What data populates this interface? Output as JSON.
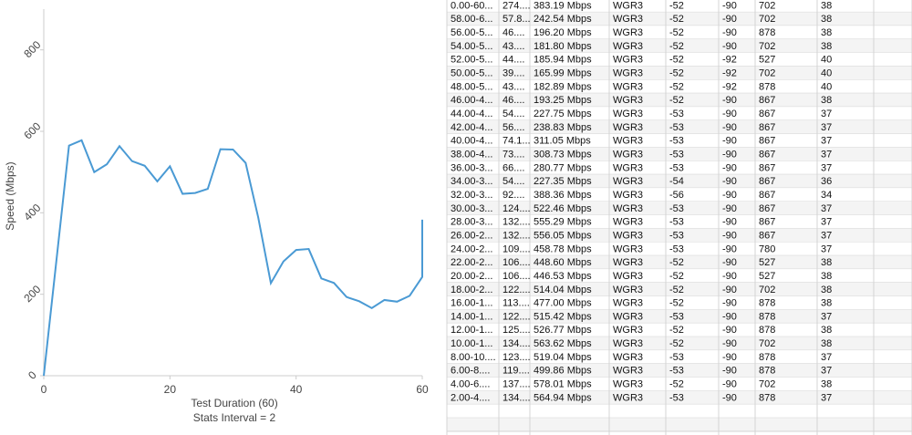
{
  "chart_data": {
    "type": "line",
    "x_label": "Test Duration (60)",
    "x_note": "Stats Interval = 2",
    "y_label": "Speed (Mbps)",
    "x": [
      0,
      4,
      6,
      8,
      10,
      12,
      14,
      16,
      18,
      20,
      22,
      24,
      26,
      28,
      30,
      32,
      34,
      36,
      38,
      40,
      42,
      44,
      46,
      48,
      50,
      52,
      54,
      56,
      58,
      60,
      60
    ],
    "values": [
      0,
      564.94,
      578.01,
      499.86,
      519.04,
      563.62,
      526.77,
      515.42,
      477.0,
      514.04,
      446.53,
      448.6,
      458.78,
      556.05,
      555.29,
      522.46,
      388.36,
      227.35,
      280.77,
      308.73,
      311.05,
      238.83,
      227.75,
      193.25,
      182.89,
      165.99,
      185.94,
      181.8,
      196.2,
      242.54,
      383.19
    ],
    "color": "#4a9ad4",
    "xlim": [
      0,
      60
    ],
    "xticks": [
      0,
      20,
      40,
      60
    ],
    "ylim": [
      0,
      900
    ],
    "yticks": [
      0,
      200,
      400,
      600,
      800
    ]
  },
  "table": {
    "rows": [
      [
        "0.00-60...",
        "274....",
        "383.19 Mbps",
        "WGR3",
        "-52",
        "-90",
        "702",
        "38"
      ],
      [
        "58.00-6...",
        "57.8...",
        "242.54 Mbps",
        "WGR3",
        "-52",
        "-90",
        "702",
        "38"
      ],
      [
        "56.00-5...",
        "46....",
        "196.20 Mbps",
        "WGR3",
        "-52",
        "-90",
        "878",
        "38"
      ],
      [
        "54.00-5...",
        "43....",
        "181.80 Mbps",
        "WGR3",
        "-52",
        "-90",
        "702",
        "38"
      ],
      [
        "52.00-5...",
        "44....",
        "185.94 Mbps",
        "WGR3",
        "-52",
        "-92",
        "527",
        "40"
      ],
      [
        "50.00-5...",
        "39....",
        "165.99 Mbps",
        "WGR3",
        "-52",
        "-92",
        "702",
        "40"
      ],
      [
        "48.00-5...",
        "43....",
        "182.89 Mbps",
        "WGR3",
        "-52",
        "-92",
        "878",
        "40"
      ],
      [
        "46.00-4...",
        "46....",
        "193.25 Mbps",
        "WGR3",
        "-52",
        "-90",
        "867",
        "38"
      ],
      [
        "44.00-4...",
        "54....",
        "227.75 Mbps",
        "WGR3",
        "-53",
        "-90",
        "867",
        "37"
      ],
      [
        "42.00-4...",
        "56....",
        "238.83 Mbps",
        "WGR3",
        "-53",
        "-90",
        "867",
        "37"
      ],
      [
        "40.00-4...",
        "74.1...",
        "311.05 Mbps",
        "WGR3",
        "-53",
        "-90",
        "867",
        "37"
      ],
      [
        "38.00-4...",
        "73....",
        "308.73 Mbps",
        "WGR3",
        "-53",
        "-90",
        "867",
        "37"
      ],
      [
        "36.00-3...",
        "66....",
        "280.77 Mbps",
        "WGR3",
        "-53",
        "-90",
        "867",
        "37"
      ],
      [
        "34.00-3...",
        "54....",
        "227.35 Mbps",
        "WGR3",
        "-54",
        "-90",
        "867",
        "36"
      ],
      [
        "32.00-3...",
        "92....",
        "388.36 Mbps",
        "WGR3",
        "-56",
        "-90",
        "867",
        "34"
      ],
      [
        "30.00-3...",
        "124....",
        "522.46 Mbps",
        "WGR3",
        "-53",
        "-90",
        "867",
        "37"
      ],
      [
        "28.00-3...",
        "132....",
        "555.29 Mbps",
        "WGR3",
        "-53",
        "-90",
        "867",
        "37"
      ],
      [
        "26.00-2...",
        "132....",
        "556.05 Mbps",
        "WGR3",
        "-53",
        "-90",
        "867",
        "37"
      ],
      [
        "24.00-2...",
        "109....",
        "458.78 Mbps",
        "WGR3",
        "-53",
        "-90",
        "780",
        "37"
      ],
      [
        "22.00-2...",
        "106....",
        "448.60 Mbps",
        "WGR3",
        "-52",
        "-90",
        "527",
        "38"
      ],
      [
        "20.00-2...",
        "106....",
        "446.53 Mbps",
        "WGR3",
        "-52",
        "-90",
        "527",
        "38"
      ],
      [
        "18.00-2...",
        "122....",
        "514.04 Mbps",
        "WGR3",
        "-52",
        "-90",
        "702",
        "38"
      ],
      [
        "16.00-1...",
        "113....",
        "477.00 Mbps",
        "WGR3",
        "-52",
        "-90",
        "878",
        "38"
      ],
      [
        "14.00-1...",
        "122....",
        "515.42 Mbps",
        "WGR3",
        "-53",
        "-90",
        "878",
        "37"
      ],
      [
        "12.00-1...",
        "125....",
        "526.77 Mbps",
        "WGR3",
        "-52",
        "-90",
        "878",
        "38"
      ],
      [
        "10.00-1...",
        "134....",
        "563.62 Mbps",
        "WGR3",
        "-52",
        "-90",
        "702",
        "38"
      ],
      [
        "8.00-10....",
        "123....",
        "519.04 Mbps",
        "WGR3",
        "-53",
        "-90",
        "878",
        "37"
      ],
      [
        "6.00-8....",
        "119....",
        "499.86 Mbps",
        "WGR3",
        "-53",
        "-90",
        "878",
        "37"
      ],
      [
        "4.00-6....",
        "137....",
        "578.01 Mbps",
        "WGR3",
        "-52",
        "-90",
        "702",
        "38"
      ],
      [
        "2.00-4....",
        "134....",
        "564.94 Mbps",
        "WGR3",
        "-53",
        "-90",
        "878",
        "37"
      ]
    ]
  }
}
